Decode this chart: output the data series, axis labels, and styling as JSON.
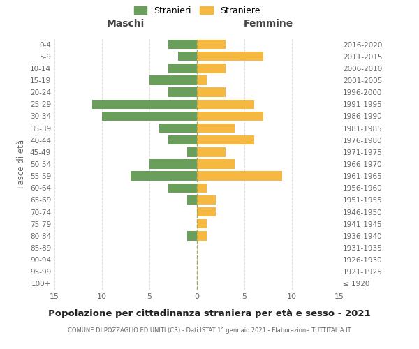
{
  "age_groups": [
    "100+",
    "95-99",
    "90-94",
    "85-89",
    "80-84",
    "75-79",
    "70-74",
    "65-69",
    "60-64",
    "55-59",
    "50-54",
    "45-49",
    "40-44",
    "35-39",
    "30-34",
    "25-29",
    "20-24",
    "15-19",
    "10-14",
    "5-9",
    "0-4"
  ],
  "birth_years": [
    "≤ 1920",
    "1921-1925",
    "1926-1930",
    "1931-1935",
    "1936-1940",
    "1941-1945",
    "1946-1950",
    "1951-1955",
    "1956-1960",
    "1961-1965",
    "1966-1970",
    "1971-1975",
    "1976-1980",
    "1981-1985",
    "1986-1990",
    "1991-1995",
    "1996-2000",
    "2001-2005",
    "2006-2010",
    "2011-2015",
    "2016-2020"
  ],
  "males": [
    0,
    0,
    0,
    0,
    1,
    0,
    0,
    1,
    3,
    7,
    5,
    1,
    3,
    4,
    10,
    11,
    3,
    5,
    3,
    2,
    3
  ],
  "females": [
    0,
    0,
    0,
    0,
    1,
    1,
    2,
    2,
    1,
    9,
    4,
    3,
    6,
    4,
    7,
    6,
    3,
    1,
    3,
    7,
    3
  ],
  "male_color": "#6a9e5b",
  "female_color": "#f5b942",
  "title": "Popolazione per cittadinanza straniera per età e sesso - 2021",
  "subtitle": "COMUNE DI POZZAGLIO ED UNITI (CR) - Dati ISTAT 1° gennaio 2021 - Elaborazione TUTTITALIA.IT",
  "ylabel_left": "Fasce di età",
  "xlabel_left": "Maschi",
  "xlabel_right": "Femmine",
  "legend_male": "Stranieri",
  "legend_female": "Straniere",
  "xlim": 15,
  "background_color": "#ffffff",
  "grid_color": "#dddddd",
  "dashed_line_color": "#aaa855"
}
